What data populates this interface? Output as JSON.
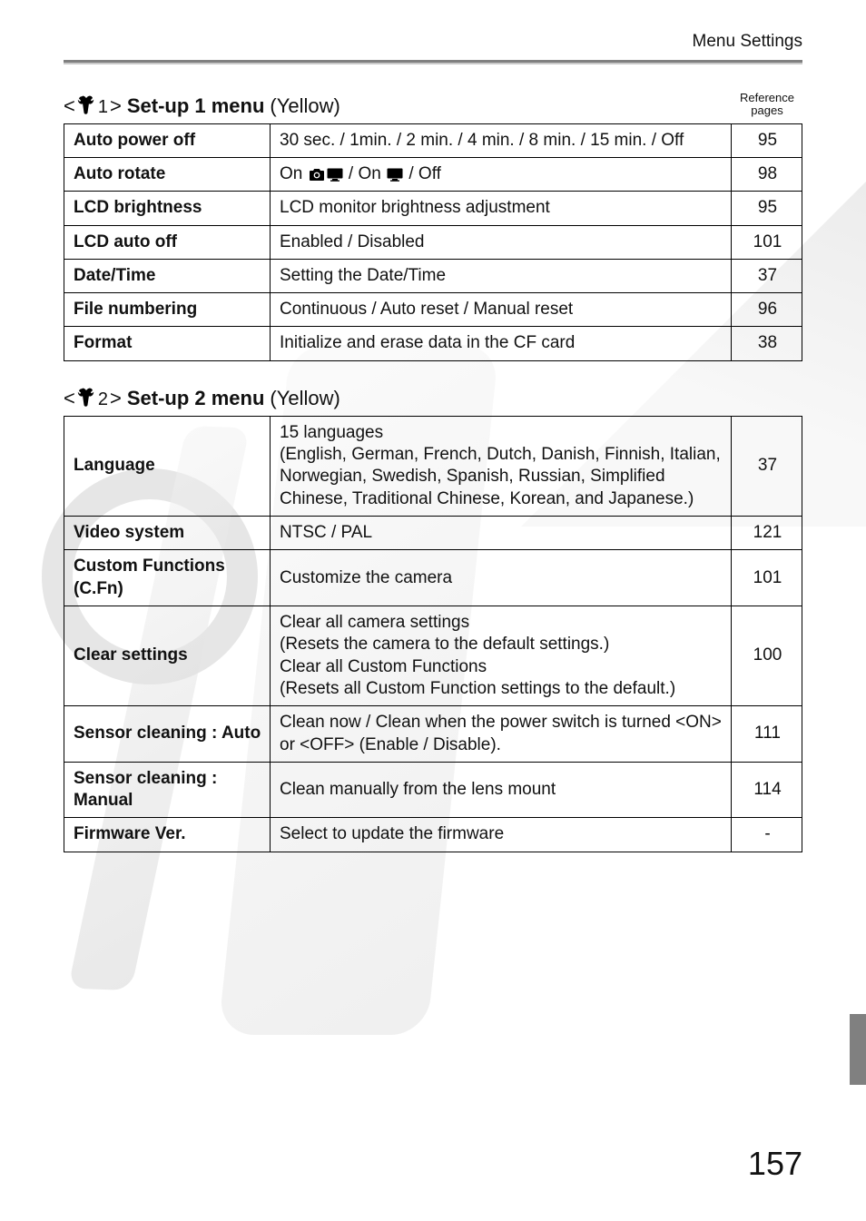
{
  "breadcrumb": "Menu Settings",
  "reference_label": "Reference\npages",
  "page_number": "157",
  "colors": {
    "rule": "#808080",
    "rule_thin": "#c9c9c9",
    "border": "#000000",
    "text": "#111111",
    "side_tab": "#808080"
  },
  "fonts": {
    "body_pt": 19,
    "title_pt": 22,
    "ref_pt": 13,
    "pagenum_pt": 36
  },
  "sections": [
    {
      "glyph_num": "1",
      "menu_name": "Set-up 1 menu",
      "menu_color": "(Yellow)",
      "show_ref_label": true,
      "rows": [
        {
          "label": "Auto power off",
          "desc": "30 sec. / 1min. / 2 min. / 4 min. / 8 min. / 15 min. / Off",
          "page": "95"
        },
        {
          "label": "Auto rotate",
          "desc_html": true,
          "desc": "On {CAM}{MON} / On {MON} / Off",
          "page": "98"
        },
        {
          "label": "LCD brightness",
          "desc": "LCD monitor brightness adjustment",
          "page": "95"
        },
        {
          "label": "LCD auto off",
          "desc": "Enabled / Disabled",
          "page": "101"
        },
        {
          "label": "Date/Time",
          "desc": "Setting the Date/Time",
          "page": "37"
        },
        {
          "label": "File numbering",
          "desc": "Continuous / Auto reset / Manual reset",
          "page": "96"
        },
        {
          "label": "Format",
          "desc": "Initialize and erase data in the CF card",
          "page": "38"
        }
      ]
    },
    {
      "glyph_num": "2",
      "menu_name": "Set-up 2 menu",
      "menu_color": "(Yellow)",
      "show_ref_label": false,
      "rows": [
        {
          "label": "Language",
          "desc": "15 languages\n(English, German, French, Dutch, Danish, Finnish, Italian, Norwegian, Swedish, Spanish, Russian, Simplified Chinese, Traditional Chinese, Korean, and Japanese.)",
          "page": "37"
        },
        {
          "label": "Video system",
          "desc": "NTSC / PAL",
          "page": "121"
        },
        {
          "label": "Custom Functions (C.Fn)",
          "desc": "Customize the camera",
          "page": "101"
        },
        {
          "label": "Clear settings",
          "desc": "Clear all camera settings\n(Resets the camera to the default settings.)\nClear all Custom Functions\n(Resets all Custom Function settings to the default.)",
          "page": "100"
        },
        {
          "label": "Sensor cleaning : Auto",
          "desc_html": true,
          "desc": "Clean now / Clean when the power switch is turned <{SC}ON{/SC}> or <{SC}OFF{/SC}> (Enable / Disable).",
          "page": "111"
        },
        {
          "label": "Sensor cleaning : Manual",
          "desc": "Clean manually from the lens mount",
          "page": "114"
        },
        {
          "label": "Firmware Ver.",
          "desc": "Select to update the firmware",
          "page": "-"
        }
      ]
    }
  ]
}
